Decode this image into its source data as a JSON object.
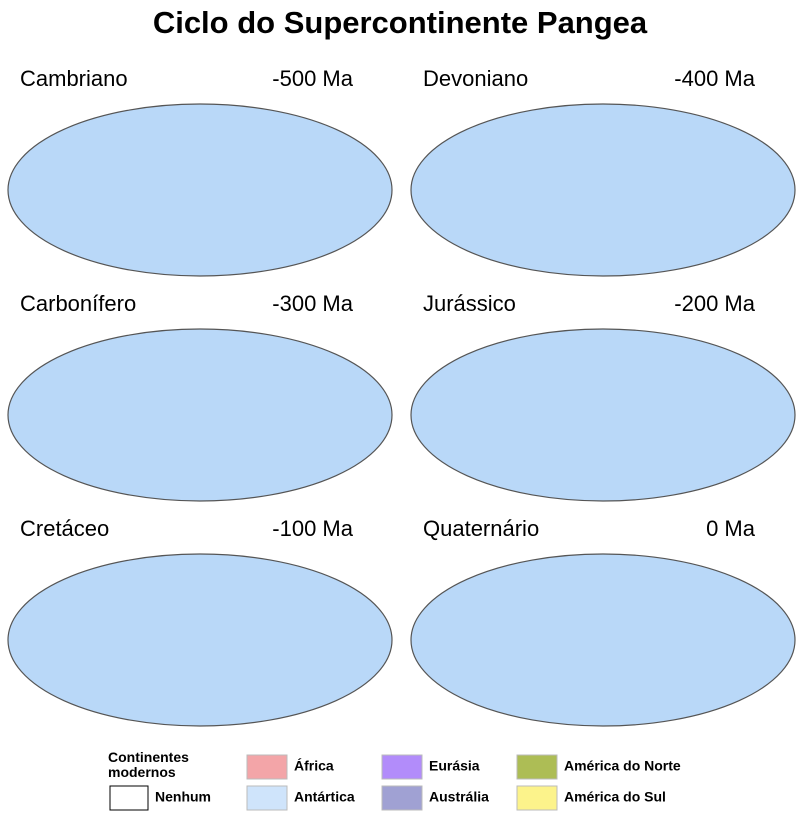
{
  "title": "Ciclo do Supercontinente Pangea",
  "panels": [
    {
      "name": "Cambriano",
      "age": "-500 Ma"
    },
    {
      "name": "Devoniano",
      "age": "-400 Ma"
    },
    {
      "name": "Carbonífero",
      "age": "-300 Ma"
    },
    {
      "name": "Jurássico",
      "age": "-200 Ma"
    },
    {
      "name": "Cretáceo",
      "age": "-100 Ma"
    },
    {
      "name": "Quaternário",
      "age": "0 Ma"
    }
  ],
  "legend": {
    "heading": "Continentes modernos",
    "items": [
      {
        "label": "Nenhum",
        "color": "#ffffff"
      },
      {
        "label": "África",
        "color": "#f3a5a8"
      },
      {
        "label": "Antártica",
        "color": "#cfe4fb"
      },
      {
        "label": "Eurásia",
        "color": "#b28cfa"
      },
      {
        "label": "Austrália",
        "color": "#a0a1d3"
      },
      {
        "label": "América do Norte",
        "color": "#adbd55"
      },
      {
        "label": "América do Sul",
        "color": "#fcf38b"
      }
    ]
  }
}
